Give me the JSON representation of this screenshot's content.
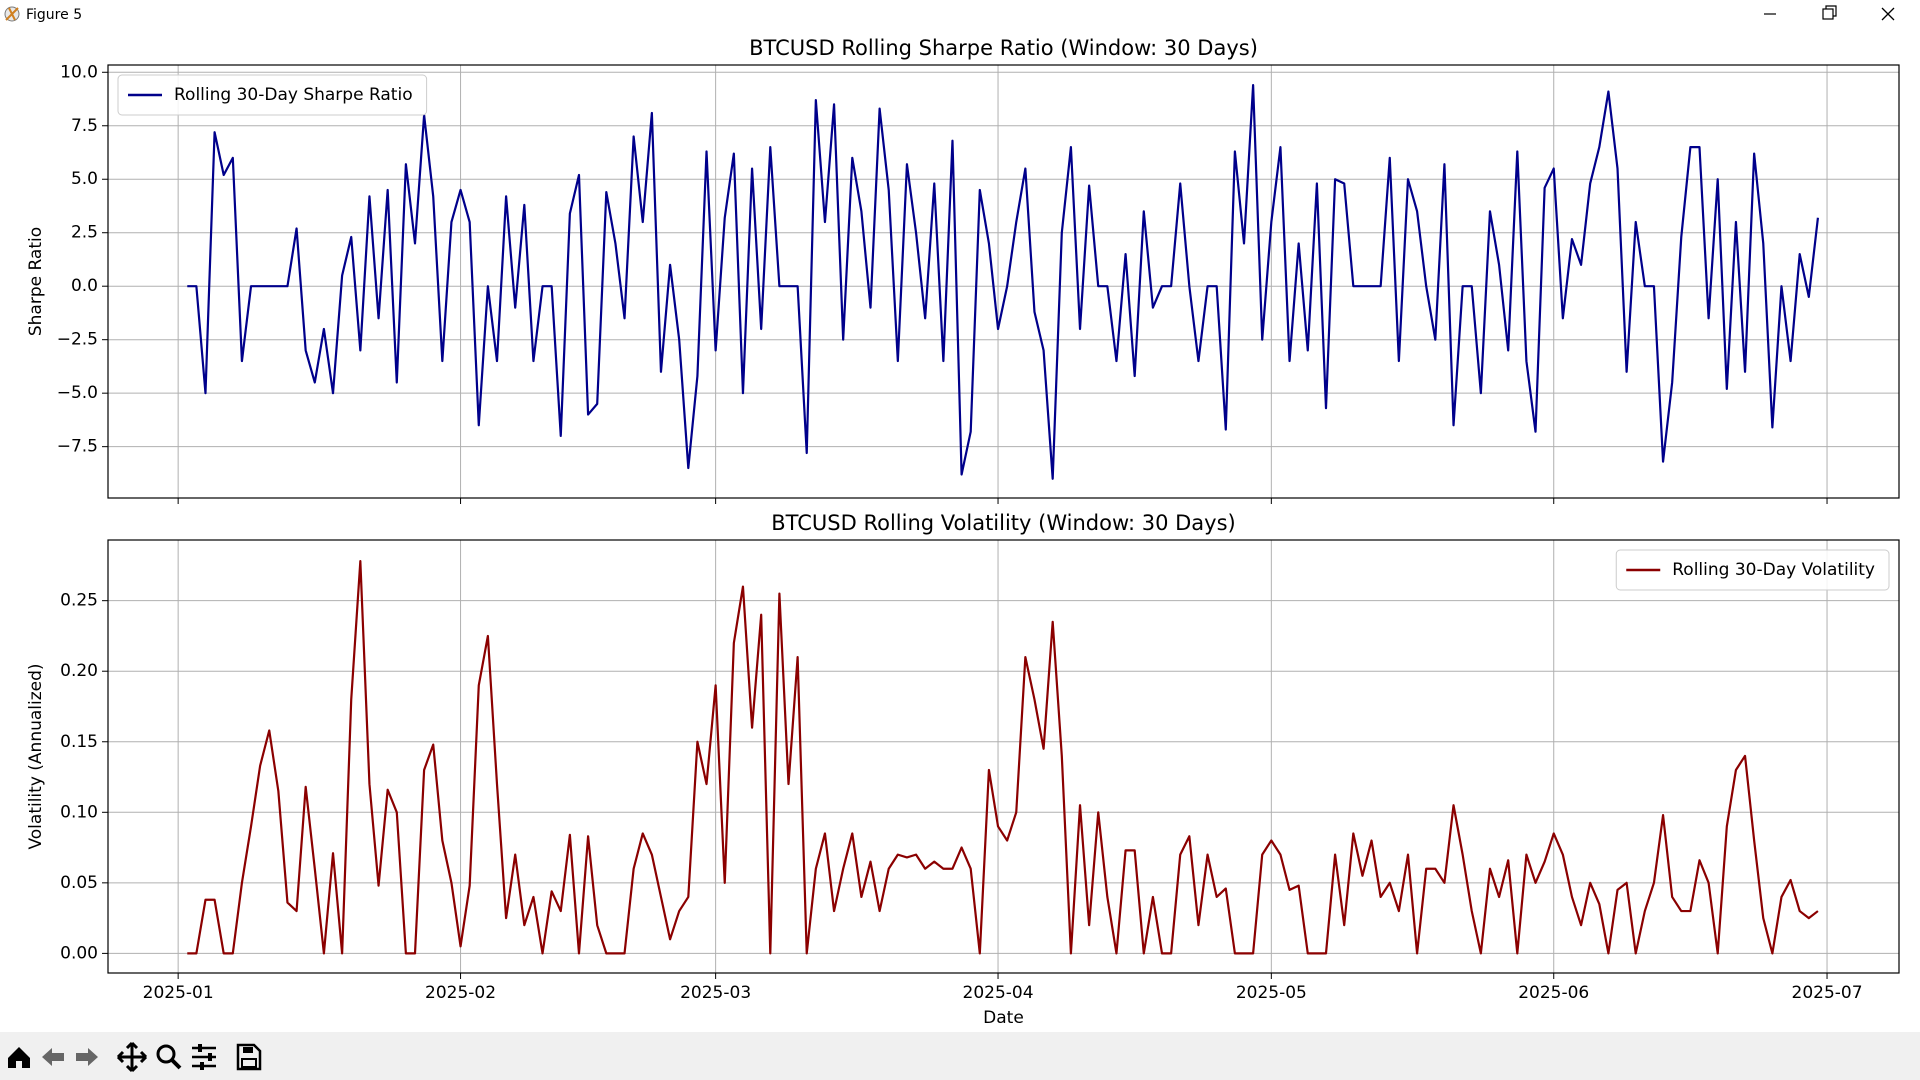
{
  "window_title": "Figure 5",
  "chart_data": [
    {
      "type": "line",
      "title": "BTCUSD Rolling Sharpe Ratio (Window: 30 Days)",
      "ylabel": "Sharpe Ratio",
      "grid": true,
      "legend": "upper left",
      "xlim": [
        -7.7,
        188.9
      ],
      "xticks": [
        0,
        31,
        59,
        90,
        120,
        151,
        181
      ],
      "ylim": [
        -9.9,
        10.34
      ],
      "yticks": [
        {
          "value": -7.5,
          "label": "−7.5"
        },
        {
          "value": -5,
          "label": "−5.0"
        },
        {
          "value": -2.5,
          "label": "−2.5"
        },
        {
          "value": 0,
          "label": "0.0"
        },
        2.5,
        {
          "value": 5,
          "label": "5.0"
        },
        7.5,
        {
          "value": 10,
          "label": "10.0"
        }
      ],
      "x": [
        1,
        2,
        3,
        4,
        5,
        6,
        7,
        8,
        9,
        10,
        11,
        12,
        13,
        14,
        15,
        16,
        17,
        18,
        19,
        20,
        21,
        22,
        23,
        24,
        25,
        26,
        27,
        28,
        29,
        30,
        31,
        32,
        33,
        34,
        35,
        36,
        37,
        38,
        39,
        40,
        41,
        42,
        43,
        44,
        45,
        46,
        47,
        48,
        49,
        50,
        51,
        52,
        53,
        54,
        55,
        56,
        57,
        58,
        59,
        60,
        61,
        62,
        63,
        64,
        65,
        66,
        67,
        68,
        69,
        70,
        71,
        72,
        73,
        74,
        75,
        76,
        77,
        78,
        79,
        80,
        81,
        82,
        83,
        84,
        85,
        86,
        87,
        88,
        89,
        90,
        91,
        92,
        93,
        94,
        95,
        96,
        97,
        98,
        99,
        100,
        101,
        102,
        103,
        104,
        105,
        106,
        107,
        108,
        109,
        110,
        111,
        112,
        113,
        114,
        115,
        116,
        117,
        118,
        119,
        120,
        121,
        122,
        123,
        124,
        125,
        126,
        127,
        128,
        129,
        130,
        131,
        132,
        133,
        134,
        135,
        136,
        137,
        138,
        139,
        140,
        141,
        142,
        143,
        144,
        145,
        146,
        147,
        148,
        149,
        150,
        151,
        152,
        153,
        154,
        155,
        156,
        157,
        158,
        159,
        160,
        161,
        162,
        163,
        164,
        165,
        166,
        167,
        168,
        169,
        170,
        171,
        172,
        173,
        174,
        175,
        176,
        177,
        178,
        179,
        180
      ],
      "series": [
        {
          "name": "Rolling 30-Day Sharpe Ratio",
          "color": "#00008b",
          "values": [
            0,
            0,
            -5,
            7.2,
            5.2,
            6,
            -3.5,
            0,
            0,
            0,
            0,
            0,
            2.7,
            -3,
            -4.5,
            -2,
            -5,
            0.5,
            2.3,
            -3,
            4.2,
            -1.5,
            4.5,
            -4.5,
            5.7,
            2,
            8,
            4.2,
            -3.5,
            3,
            4.5,
            3,
            -6.5,
            0,
            -3.5,
            4.2,
            -1,
            3.8,
            -3.5,
            0,
            0,
            -7,
            3.4,
            5.2,
            -6,
            -5.5,
            4.4,
            2,
            -1.5,
            7,
            3,
            8.1,
            -4,
            1,
            -2.5,
            -8.5,
            -4.2,
            6.3,
            -3,
            3.2,
            6.2,
            -5,
            5.5,
            -2,
            6.5,
            0,
            0,
            0,
            -7.8,
            8.7,
            3,
            8.5,
            -2.5,
            6,
            3.5,
            -1,
            8.3,
            4.5,
            -3.5,
            5.7,
            2.5,
            -1.5,
            4.8,
            -3.5,
            6.8,
            -8.8,
            -6.8,
            4.5,
            2,
            -2,
            0,
            3,
            5.5,
            -1.2,
            -3,
            -9,
            2.5,
            6.5,
            -2,
            4.7,
            0,
            0,
            -3.5,
            1.5,
            -4.2,
            3.5,
            -1,
            0,
            0,
            4.8,
            0,
            -3.5,
            0,
            0,
            -6.7,
            6.3,
            2,
            9.4,
            -2.5,
            3,
            6.5,
            -3.5,
            2,
            -3,
            4.8,
            -5.7,
            5,
            4.8,
            0,
            0,
            0,
            0,
            6,
            -3.5,
            5,
            3.5,
            0,
            -2.5,
            5.7,
            -6.5,
            0,
            0,
            -5,
            3.5,
            1,
            -3,
            6.3,
            -3.5,
            -6.8,
            4.6,
            5.5,
            -1.5,
            2.2,
            1,
            4.8,
            6.5,
            9.1,
            5.5,
            -4,
            3,
            0,
            0,
            -8.2,
            -4.5,
            2.3,
            6.5,
            6.5,
            -1.5,
            5,
            -4.8,
            3,
            -4,
            6.2,
            2,
            -6.6,
            0,
            -3.5,
            1.5,
            -0.5,
            3.2
          ]
        }
      ]
    },
    {
      "type": "line",
      "title": "BTCUSD Rolling Volatility (Window: 30 Days)",
      "ylabel": "Volatility (Annualized)",
      "xlabel": "Date",
      "grid": true,
      "legend": "upper right",
      "xlim": [
        -7.7,
        188.9
      ],
      "xticks": [
        {
          "value": 0,
          "label": "2025-01"
        },
        {
          "value": 31,
          "label": "2025-02"
        },
        {
          "value": 59,
          "label": "2025-03"
        },
        {
          "value": 90,
          "label": "2025-04"
        },
        {
          "value": 120,
          "label": "2025-05"
        },
        {
          "value": 151,
          "label": "2025-06"
        },
        {
          "value": 181,
          "label": "2025-07"
        }
      ],
      "ylim": [
        -0.0139,
        0.293
      ],
      "yticks": [
        {
          "value": 0,
          "label": "0.00"
        },
        {
          "value": 0.05,
          "label": "0.05"
        },
        {
          "value": 0.1,
          "label": "0.10"
        },
        {
          "value": 0.15,
          "label": "0.15"
        },
        {
          "value": 0.2,
          "label": "0.20"
        },
        {
          "value": 0.25,
          "label": "0.25"
        }
      ],
      "x": [
        1,
        2,
        3,
        4,
        5,
        6,
        7,
        8,
        9,
        10,
        11,
        12,
        13,
        14,
        15,
        16,
        17,
        18,
        19,
        20,
        21,
        22,
        23,
        24,
        25,
        26,
        27,
        28,
        29,
        30,
        31,
        32,
        33,
        34,
        35,
        36,
        37,
        38,
        39,
        40,
        41,
        42,
        43,
        44,
        45,
        46,
        47,
        48,
        49,
        50,
        51,
        52,
        53,
        54,
        55,
        56,
        57,
        58,
        59,
        60,
        61,
        62,
        63,
        64,
        65,
        66,
        67,
        68,
        69,
        70,
        71,
        72,
        73,
        74,
        75,
        76,
        77,
        78,
        79,
        80,
        81,
        82,
        83,
        84,
        85,
        86,
        87,
        88,
        89,
        90,
        91,
        92,
        93,
        94,
        95,
        96,
        97,
        98,
        99,
        100,
        101,
        102,
        103,
        104,
        105,
        106,
        107,
        108,
        109,
        110,
        111,
        112,
        113,
        114,
        115,
        116,
        117,
        118,
        119,
        120,
        121,
        122,
        123,
        124,
        125,
        126,
        127,
        128,
        129,
        130,
        131,
        132,
        133,
        134,
        135,
        136,
        137,
        138,
        139,
        140,
        141,
        142,
        143,
        144,
        145,
        146,
        147,
        148,
        149,
        150,
        151,
        152,
        153,
        154,
        155,
        156,
        157,
        158,
        159,
        160,
        161,
        162,
        163,
        164,
        165,
        166,
        167,
        168,
        169,
        170,
        171,
        172,
        173,
        174,
        175,
        176,
        177,
        178,
        179,
        180
      ],
      "series": [
        {
          "name": "Rolling 30-Day Volatility",
          "color": "#8b0000",
          "values": [
            0,
            0,
            0.038,
            0.038,
            0,
            0,
            0.05,
            0.09,
            0.133,
            0.158,
            0.115,
            0.036,
            0.03,
            0.118,
            0.06,
            0,
            0.071,
            0,
            0.18,
            0.278,
            0.12,
            0.048,
            0.116,
            0.1,
            0,
            0,
            0.13,
            0.148,
            0.08,
            0.05,
            0.005,
            0.048,
            0.19,
            0.225,
            0.12,
            0.025,
            0.07,
            0.02,
            0.04,
            0,
            0.044,
            0.03,
            0.084,
            0,
            0.083,
            0.02,
            0,
            0,
            0,
            0.06,
            0.085,
            0.07,
            0.04,
            0.01,
            0.03,
            0.04,
            0.15,
            0.12,
            0.19,
            0.05,
            0.22,
            0.26,
            0.16,
            0.24,
            0,
            0.255,
            0.12,
            0.21,
            0,
            0.06,
            0.085,
            0.03,
            0.06,
            0.085,
            0.04,
            0.065,
            0.03,
            0.06,
            0.07,
            0.068,
            0.07,
            0.06,
            0.065,
            0.06,
            0.06,
            0.075,
            0.06,
            0,
            0.13,
            0.09,
            0.08,
            0.1,
            0.21,
            0.18,
            0.145,
            0.235,
            0.14,
            0,
            0.105,
            0.02,
            0.1,
            0.04,
            0,
            0.073,
            0.073,
            0,
            0.04,
            0,
            0,
            0.07,
            0.083,
            0.02,
            0.07,
            0.04,
            0.046,
            0,
            0,
            0,
            0.07,
            0.08,
            0.07,
            0.045,
            0.048,
            0,
            0,
            0,
            0.07,
            0.02,
            0.085,
            0.055,
            0.08,
            0.04,
            0.05,
            0.03,
            0.07,
            0,
            0.06,
            0.06,
            0.05,
            0.105,
            0.07,
            0.03,
            0,
            0.06,
            0.04,
            0.066,
            0,
            0.07,
            0.05,
            0.065,
            0.085,
            0.07,
            0.04,
            0.02,
            0.05,
            0.035,
            0,
            0.045,
            0.05,
            0,
            0.03,
            0.05,
            0.098,
            0.04,
            0.03,
            0.03,
            0.066,
            0.05,
            0,
            0.09,
            0.13,
            0.14,
            0.08,
            0.025,
            0,
            0.04,
            0.052,
            0.03,
            0.025,
            0.03
          ]
        }
      ]
    }
  ]
}
